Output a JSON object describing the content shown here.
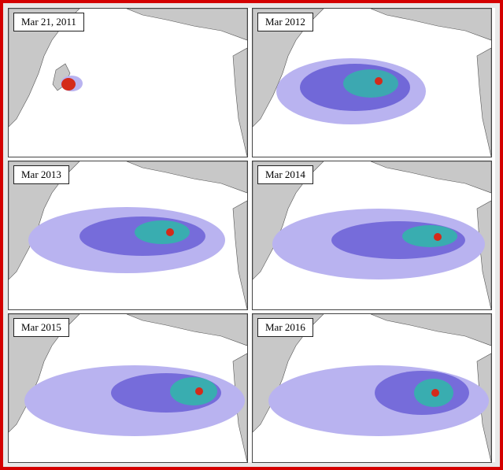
{
  "panels": [
    {
      "label": "Mar 21, 2011"
    },
    {
      "label": "Mar 2012"
    },
    {
      "label": "Mar 2013"
    },
    {
      "label": "Mar 2014"
    },
    {
      "label": "Mar 2015"
    },
    {
      "label": "Mar 2016"
    }
  ],
  "colors": {
    "frame": "#d40000",
    "land": "#c8c8c8",
    "ocean": "#ffffff",
    "plume_low": "#b9b3f0",
    "plume_mid": "#5a4fd0",
    "plume_high": "#2fb8a8",
    "hotspot": "#d42a1a"
  }
}
